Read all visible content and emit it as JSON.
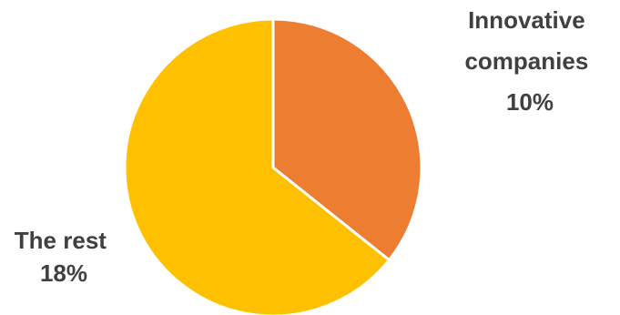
{
  "chart_data": {
    "type": "pie",
    "slices": [
      {
        "label_lines": [
          "Innovative",
          "companies"
        ],
        "value_label": "10%",
        "value": 10,
        "color": "#ED7D31"
      },
      {
        "label_lines": [
          "The rest"
        ],
        "value_label": "18%",
        "value": 18,
        "color": "#FFC000"
      }
    ],
    "start": "12 o'clock",
    "direction": "clockwise",
    "slice_border_color": "#FFFFFF"
  }
}
